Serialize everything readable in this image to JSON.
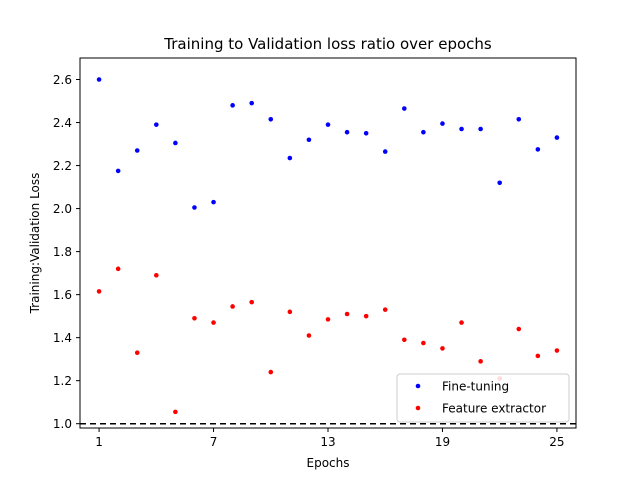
{
  "chart_data": {
    "type": "scatter",
    "title": "Training to Validation loss ratio over epochs",
    "xlabel": "Epochs",
    "ylabel": "Training:Validation Loss",
    "xlim": [
      0,
      26
    ],
    "ylim": [
      0.98,
      2.7
    ],
    "x_ticks": [
      1,
      7,
      13,
      19,
      25
    ],
    "y_ticks": [
      1.0,
      1.2,
      1.4,
      1.6,
      1.8,
      2.0,
      2.2,
      2.4,
      2.6
    ],
    "grid": false,
    "legend_position": "lower-right",
    "reference_line": {
      "y": 1.0,
      "style": "dashed",
      "color": "#000000"
    },
    "x": [
      1,
      2,
      3,
      4,
      5,
      6,
      7,
      8,
      9,
      10,
      11,
      12,
      13,
      14,
      15,
      16,
      17,
      18,
      19,
      20,
      21,
      22,
      23,
      24,
      25
    ],
    "series": [
      {
        "name": "Fine-tuning",
        "color": "#0000ff",
        "values": [
          2.6,
          2.175,
          2.27,
          2.39,
          2.305,
          2.005,
          2.03,
          2.48,
          2.49,
          2.415,
          2.235,
          2.32,
          2.39,
          2.355,
          2.35,
          2.265,
          2.465,
          2.355,
          2.395,
          2.37,
          2.37,
          2.12,
          2.415,
          2.275,
          2.33
        ]
      },
      {
        "name": "Feature extractor",
        "color": "#ff0000",
        "values": [
          1.615,
          1.72,
          1.33,
          1.69,
          1.055,
          1.49,
          1.47,
          1.545,
          1.565,
          1.24,
          1.52,
          1.41,
          1.485,
          1.51,
          1.5,
          1.53,
          1.39,
          1.375,
          1.35,
          1.47,
          1.29,
          1.21,
          1.44,
          1.315,
          1.34
        ]
      }
    ]
  }
}
